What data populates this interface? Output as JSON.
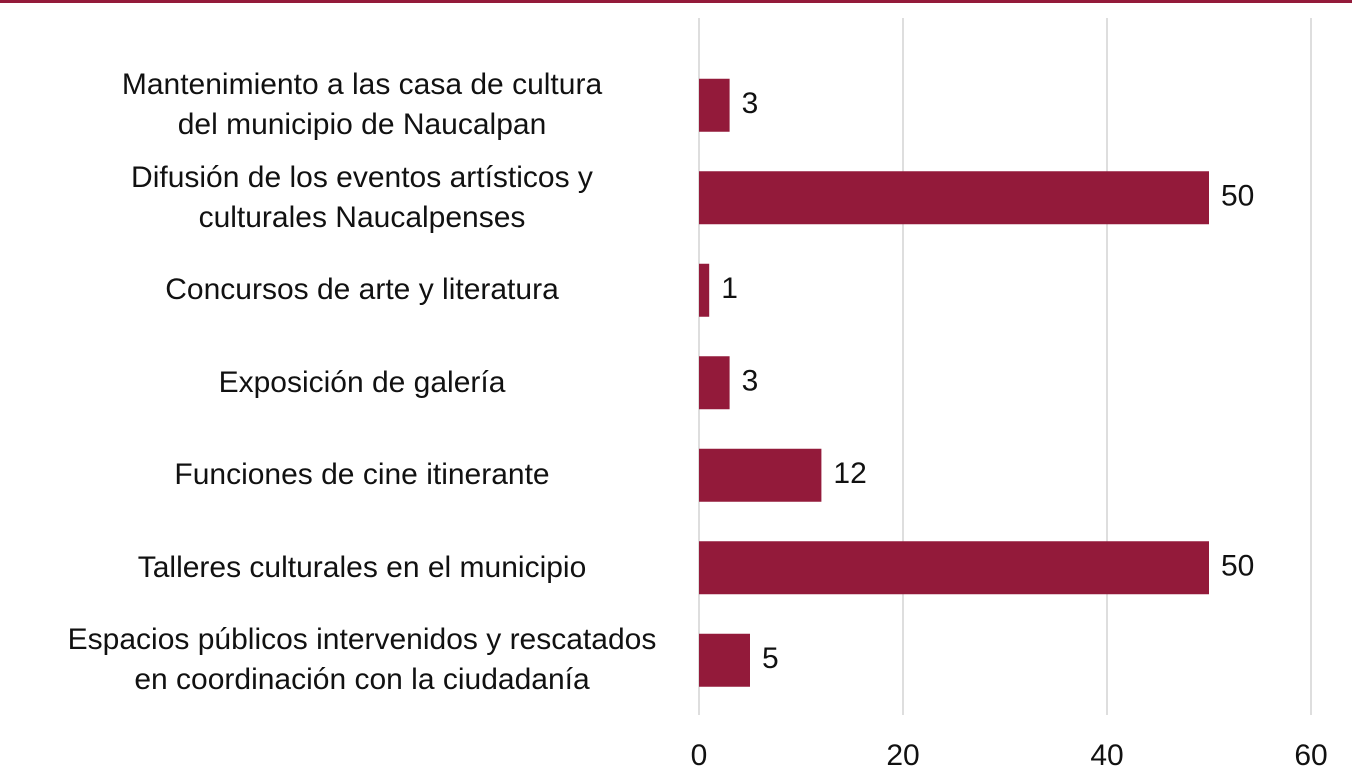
{
  "chart_data": {
    "type": "hbar",
    "categories": [
      "Mantenimiento a las casa de cultura\ndel municipio de Naucalpan",
      "Difusión de los eventos artísticos y\nculturales Naucalpenses",
      "Concursos de arte y literatura",
      "Exposición de galería",
      "Funciones de cine itinerante",
      "Talleres culturales en el municipio",
      "Espacios públicos intervenidos y rescatados\nen coordinación con la ciudadanía"
    ],
    "values": [
      3,
      50,
      1,
      3,
      12,
      50,
      5
    ],
    "color": "#931a3a",
    "xlim": [
      0,
      60
    ],
    "xticks": [
      0,
      20,
      40,
      60
    ],
    "grid": true
  }
}
